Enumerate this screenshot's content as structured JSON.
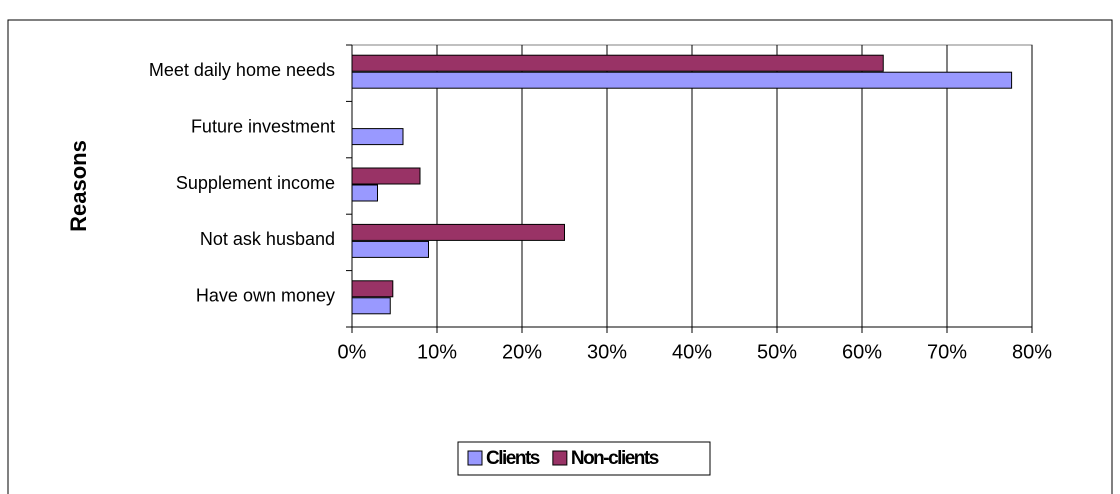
{
  "chart_data": {
    "type": "hbar",
    "y_axis_label": "Reasons",
    "categories": [
      "Meet daily home needs",
      "Future investment",
      "Supplement income",
      "Not ask husband",
      "Have own money"
    ],
    "series": [
      {
        "name": "Clients",
        "color": "#9999ff",
        "values": [
          77.6,
          6,
          3,
          9,
          4.5
        ]
      },
      {
        "name": "Non-clients",
        "color": "#993366",
        "values": [
          62.5,
          0,
          8,
          25,
          4.8
        ]
      }
    ],
    "xlim": [
      0,
      80
    ],
    "xticks": [
      {
        "value": 0,
        "label": "0%"
      },
      {
        "value": 10,
        "label": "10%"
      },
      {
        "value": 20,
        "label": "20%"
      },
      {
        "value": 30,
        "label": "30%"
      },
      {
        "value": 40,
        "label": "40%"
      },
      {
        "value": 50,
        "label": "50%"
      },
      {
        "value": 60,
        "label": "60%"
      },
      {
        "value": 70,
        "label": "70%"
      },
      {
        "value": 80,
        "label": "80%"
      }
    ],
    "grid": true,
    "legend": "bottom"
  }
}
